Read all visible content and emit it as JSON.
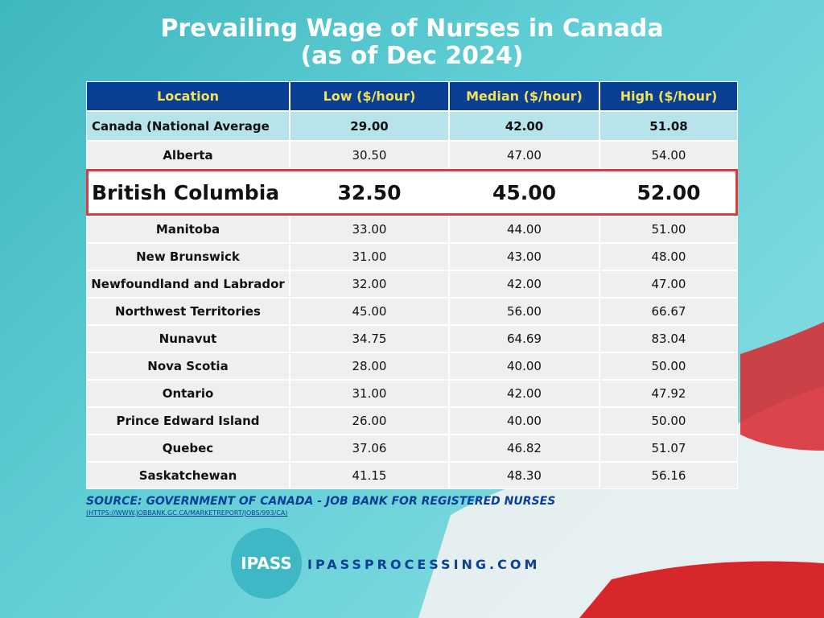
{
  "header": {
    "title_line1": "Prevailing Wage of Nurses in Canada",
    "title_line2": "(as of Dec 2024)"
  },
  "table": {
    "columns": [
      "Location",
      "Low ($/hour)",
      "Median ($/hour)",
      "High ($/hour)"
    ],
    "rows": [
      [
        "Canada (National Average",
        "29.00",
        "42.00",
        "51.08"
      ],
      [
        "Alberta",
        "30.50",
        "47.00",
        "54.00"
      ],
      [
        "British Columbia",
        "32.50",
        "45.00",
        "52.00"
      ],
      [
        "Manitoba",
        "33.00",
        "44.00",
        "51.00"
      ],
      [
        "New Brunswick",
        "31.00",
        "43.00",
        "48.00"
      ],
      [
        "Newfoundland and Labrador",
        "32.00",
        "42.00",
        "47.00"
      ],
      [
        "Northwest Territories",
        "45.00",
        "56.00",
        "66.67"
      ],
      [
        "Nunavut",
        "34.75",
        "64.69",
        "83.04"
      ],
      [
        "Nova Scotia",
        "28.00",
        "40.00",
        "50.00"
      ],
      [
        "Ontario",
        "31.00",
        "42.00",
        "47.92"
      ],
      [
        "Prince Edward Island",
        "26.00",
        "40.00",
        "50.00"
      ],
      [
        "Quebec",
        "37.06",
        "46.82",
        "51.07"
      ],
      [
        "Saskatchewan",
        "41.15",
        "48.30",
        "56.16"
      ]
    ]
  },
  "footer": {
    "source": "SOURCE: GOVERNMENT OF CANADA - JOB BANK FOR REGISTERED NURSES",
    "url": "(HTTPS://WWW.JOBBANK.GC.CA/MARKETREPORT/JOBS/993/CA)",
    "logo": "IPASS",
    "website": "IPASSPROCESSING.COM"
  }
}
